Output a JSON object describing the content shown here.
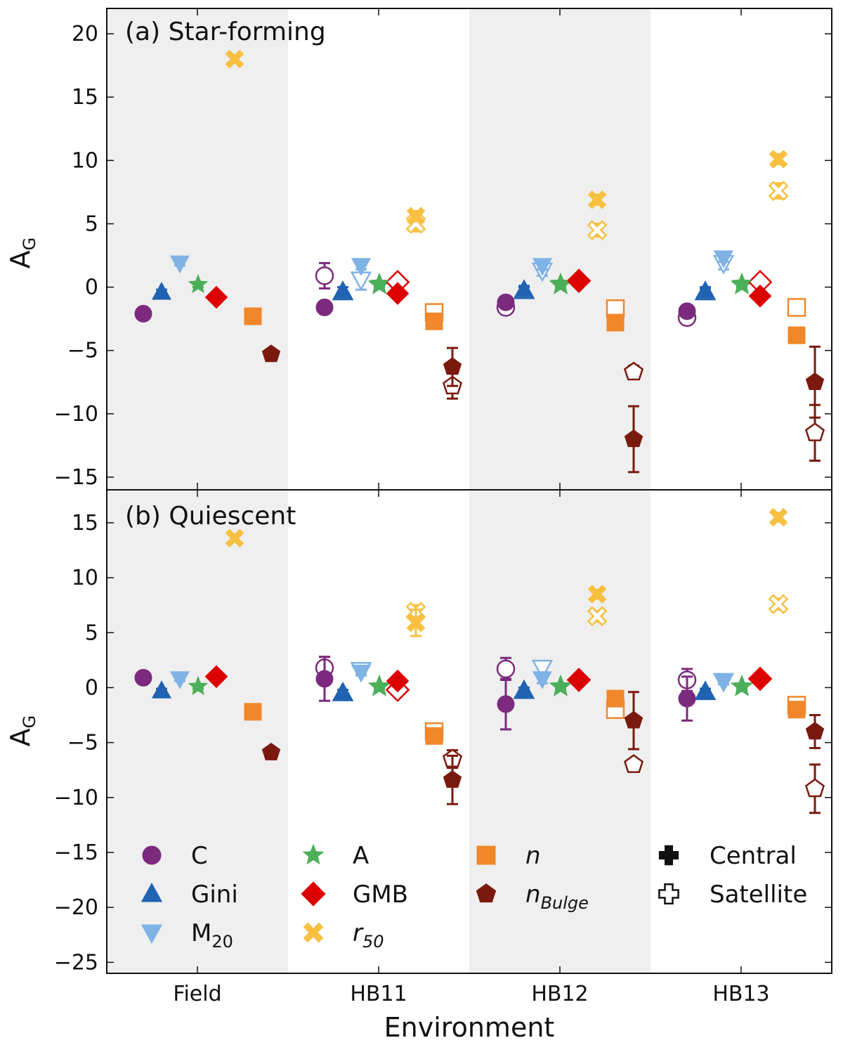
{
  "chart_data": {
    "type": "scatter",
    "categories": [
      "Field",
      "HB11",
      "HB12",
      "HB13"
    ],
    "xlabel": "Environment",
    "ylabel_main": "A",
    "ylabel_sub": "G",
    "metrics": [
      {
        "key": "C",
        "label": "C",
        "label_italic": false,
        "marker": "circle",
        "color": "#7b2a7d"
      },
      {
        "key": "Gini",
        "label": "Gini",
        "label_italic": false,
        "marker": "triangle-up",
        "color": "#1f63b2"
      },
      {
        "key": "M20",
        "label": "M",
        "label_sub": "20",
        "label_italic": false,
        "marker": "triangle-down",
        "color": "#7fb2e5"
      },
      {
        "key": "A",
        "label": "A",
        "label_italic": false,
        "marker": "star",
        "color": "#4caf5a"
      },
      {
        "key": "GMB",
        "label": "GMB",
        "label_italic": false,
        "marker": "diamond",
        "color": "#dd0000"
      },
      {
        "key": "r50",
        "label": "r",
        "label_sub": "50",
        "label_italic": true,
        "marker": "x",
        "color": "#f7c040"
      },
      {
        "key": "n",
        "label": "n",
        "label_italic": true,
        "marker": "square",
        "color": "#f0872a"
      },
      {
        "key": "nBulge",
        "label": "n",
        "label_sub": "Bulge",
        "label_italic": true,
        "marker": "pentagon",
        "color": "#7a1a0e"
      }
    ],
    "type_legend": [
      {
        "label": "Central",
        "style": "filled"
      },
      {
        "label": "Satellite",
        "style": "open"
      }
    ],
    "panels": [
      {
        "title": "(a) Star-forming",
        "ylim": [
          -16,
          22
        ],
        "yticks": [
          -15,
          -10,
          -5,
          0,
          5,
          10,
          15,
          20
        ],
        "points": [
          {
            "env": "Field",
            "metric": "C",
            "type": "central",
            "y": -2.1,
            "err": 0.3
          },
          {
            "env": "Field",
            "metric": "Gini",
            "type": "central",
            "y": -0.4,
            "err": 0.2
          },
          {
            "env": "Field",
            "metric": "M20",
            "type": "central",
            "y": 1.9,
            "err": 0.2
          },
          {
            "env": "Field",
            "metric": "A",
            "type": "central",
            "y": 0.2,
            "err": 0.2
          },
          {
            "env": "Field",
            "metric": "GMB",
            "type": "central",
            "y": -0.8,
            "err": 0.2
          },
          {
            "env": "Field",
            "metric": "r50",
            "type": "central",
            "y": 18.0,
            "err": 0.3
          },
          {
            "env": "Field",
            "metric": "n",
            "type": "central",
            "y": -2.3,
            "err": 0.2
          },
          {
            "env": "Field",
            "metric": "nBulge",
            "type": "central",
            "y": -5.3,
            "err": 0.2
          },
          {
            "env": "HB11",
            "metric": "C",
            "type": "central",
            "y": -1.6,
            "err": 0.3
          },
          {
            "env": "HB11",
            "metric": "C",
            "type": "satellite",
            "y": 0.9,
            "err": 1.0
          },
          {
            "env": "HB11",
            "metric": "Gini",
            "type": "central",
            "y": -0.3,
            "err": 0.3
          },
          {
            "env": "HB11",
            "metric": "Gini",
            "type": "satellite",
            "y": -0.4,
            "err": 0.4
          },
          {
            "env": "HB11",
            "metric": "M20",
            "type": "central",
            "y": 1.7,
            "err": 0.3
          },
          {
            "env": "HB11",
            "metric": "M20",
            "type": "satellite",
            "y": 0.6,
            "err": 0.8
          },
          {
            "env": "HB11",
            "metric": "A",
            "type": "central",
            "y": 0.3,
            "err": 0.2
          },
          {
            "env": "HB11",
            "metric": "A",
            "type": "satellite",
            "y": 0.2,
            "err": 0.2
          },
          {
            "env": "HB11",
            "metric": "GMB",
            "type": "central",
            "y": -0.5,
            "err": 0.3
          },
          {
            "env": "HB11",
            "metric": "GMB",
            "type": "satellite",
            "y": 0.4,
            "err": 0.3
          },
          {
            "env": "HB11",
            "metric": "r50",
            "type": "central",
            "y": 5.6,
            "err": 0.4
          },
          {
            "env": "HB11",
            "metric": "r50",
            "type": "satellite",
            "y": 5.0,
            "err": 0.6
          },
          {
            "env": "HB11",
            "metric": "n",
            "type": "central",
            "y": -2.7,
            "err": 0.4
          },
          {
            "env": "HB11",
            "metric": "n",
            "type": "satellite",
            "y": -2.0,
            "err": 0.5
          },
          {
            "env": "HB11",
            "metric": "nBulge",
            "type": "central",
            "y": -6.3,
            "err": 1.5
          },
          {
            "env": "HB11",
            "metric": "nBulge",
            "type": "satellite",
            "y": -7.8,
            "err": 1.0
          },
          {
            "env": "HB12",
            "metric": "C",
            "type": "central",
            "y": -1.2,
            "err": 0.3
          },
          {
            "env": "HB12",
            "metric": "C",
            "type": "satellite",
            "y": -1.6,
            "err": 0.3
          },
          {
            "env": "HB12",
            "metric": "Gini",
            "type": "central",
            "y": -0.2,
            "err": 0.3
          },
          {
            "env": "HB12",
            "metric": "Gini",
            "type": "satellite",
            "y": -0.3,
            "err": 0.3
          },
          {
            "env": "HB12",
            "metric": "M20",
            "type": "central",
            "y": 1.7,
            "err": 0.3
          },
          {
            "env": "HB12",
            "metric": "M20",
            "type": "satellite",
            "y": 1.3,
            "err": 0.4
          },
          {
            "env": "HB12",
            "metric": "A",
            "type": "central",
            "y": 0.3,
            "err": 0.2
          },
          {
            "env": "HB12",
            "metric": "A",
            "type": "satellite",
            "y": 0.2,
            "err": 0.2
          },
          {
            "env": "HB12",
            "metric": "GMB",
            "type": "central",
            "y": 0.5,
            "err": 0.3
          },
          {
            "env": "HB12",
            "metric": "GMB",
            "type": "satellite",
            "y": 0.5,
            "err": 0.3
          },
          {
            "env": "HB12",
            "metric": "r50",
            "type": "central",
            "y": 6.9,
            "err": 0.4
          },
          {
            "env": "HB12",
            "metric": "r50",
            "type": "satellite",
            "y": 4.5,
            "err": 0.5
          },
          {
            "env": "HB12",
            "metric": "n",
            "type": "central",
            "y": -2.8,
            "err": 0.4
          },
          {
            "env": "HB12",
            "metric": "n",
            "type": "satellite",
            "y": -1.7,
            "err": 0.5
          },
          {
            "env": "HB12",
            "metric": "nBulge",
            "type": "central",
            "y": -12.0,
            "err": 2.6
          },
          {
            "env": "HB12",
            "metric": "nBulge",
            "type": "satellite",
            "y": -6.7,
            "err": 0.5
          },
          {
            "env": "HB13",
            "metric": "C",
            "type": "central",
            "y": -1.9,
            "err": 0.3
          },
          {
            "env": "HB13",
            "metric": "C",
            "type": "satellite",
            "y": -2.4,
            "err": 0.3
          },
          {
            "env": "HB13",
            "metric": "Gini",
            "type": "central",
            "y": -0.3,
            "err": 0.3
          },
          {
            "env": "HB13",
            "metric": "Gini",
            "type": "satellite",
            "y": -0.4,
            "err": 0.3
          },
          {
            "env": "HB13",
            "metric": "M20",
            "type": "central",
            "y": 2.3,
            "err": 0.3
          },
          {
            "env": "HB13",
            "metric": "M20",
            "type": "satellite",
            "y": 1.9,
            "err": 0.5
          },
          {
            "env": "HB13",
            "metric": "A",
            "type": "central",
            "y": 0.3,
            "err": 0.2
          },
          {
            "env": "HB13",
            "metric": "A",
            "type": "satellite",
            "y": 0.2,
            "err": 0.2
          },
          {
            "env": "HB13",
            "metric": "GMB",
            "type": "central",
            "y": -0.7,
            "err": 0.3
          },
          {
            "env": "HB13",
            "metric": "GMB",
            "type": "satellite",
            "y": 0.4,
            "err": 0.3
          },
          {
            "env": "HB13",
            "metric": "r50",
            "type": "central",
            "y": 10.1,
            "err": 0.4
          },
          {
            "env": "HB13",
            "metric": "r50",
            "type": "satellite",
            "y": 7.6,
            "err": 0.6
          },
          {
            "env": "HB13",
            "metric": "n",
            "type": "central",
            "y": -3.8,
            "err": 0.4
          },
          {
            "env": "HB13",
            "metric": "n",
            "type": "satellite",
            "y": -1.6,
            "err": 0.6
          },
          {
            "env": "HB13",
            "metric": "nBulge",
            "type": "central",
            "y": -7.5,
            "err": 2.8
          },
          {
            "env": "HB13",
            "metric": "nBulge",
            "type": "satellite",
            "y": -11.5,
            "err": 2.2
          }
        ]
      },
      {
        "title": "(b) Quiescent",
        "ylim": [
          -26,
          18
        ],
        "yticks": [
          -25,
          -20,
          -15,
          -10,
          -5,
          0,
          5,
          10,
          15
        ],
        "points": [
          {
            "env": "Field",
            "metric": "C",
            "type": "central",
            "y": 0.9,
            "err": 0.4
          },
          {
            "env": "Field",
            "metric": "Gini",
            "type": "central",
            "y": -0.3,
            "err": 0.2
          },
          {
            "env": "Field",
            "metric": "M20",
            "type": "central",
            "y": 0.8,
            "err": 0.2
          },
          {
            "env": "Field",
            "metric": "A",
            "type": "central",
            "y": 0.1,
            "err": 0.2
          },
          {
            "env": "Field",
            "metric": "GMB",
            "type": "central",
            "y": 1.0,
            "err": 0.2
          },
          {
            "env": "Field",
            "metric": "r50",
            "type": "central",
            "y": 13.6,
            "err": 0.3
          },
          {
            "env": "Field",
            "metric": "n",
            "type": "central",
            "y": -2.2,
            "err": 0.2
          },
          {
            "env": "Field",
            "metric": "nBulge",
            "type": "central",
            "y": -5.9,
            "err": 0.2
          },
          {
            "env": "HB11",
            "metric": "C",
            "type": "central",
            "y": 0.8,
            "err": 2.0
          },
          {
            "env": "HB11",
            "metric": "C",
            "type": "satellite",
            "y": 1.8,
            "err": 1.0
          },
          {
            "env": "HB11",
            "metric": "Gini",
            "type": "central",
            "y": -0.5,
            "err": 0.3
          },
          {
            "env": "HB11",
            "metric": "Gini",
            "type": "satellite",
            "y": -0.5,
            "err": 0.3
          },
          {
            "env": "HB11",
            "metric": "M20",
            "type": "central",
            "y": 1.4,
            "err": 0.3
          },
          {
            "env": "HB11",
            "metric": "M20",
            "type": "satellite",
            "y": 1.6,
            "err": 0.3
          },
          {
            "env": "HB11",
            "metric": "A",
            "type": "central",
            "y": 0.1,
            "err": 0.2
          },
          {
            "env": "HB11",
            "metric": "A",
            "type": "satellite",
            "y": 0.1,
            "err": 0.2
          },
          {
            "env": "HB11",
            "metric": "GMB",
            "type": "central",
            "y": 0.6,
            "err": 0.3
          },
          {
            "env": "HB11",
            "metric": "GMB",
            "type": "satellite",
            "y": -0.2,
            "err": 0.4
          },
          {
            "env": "HB11",
            "metric": "r50",
            "type": "central",
            "y": 5.9,
            "err": 1.2
          },
          {
            "env": "HB11",
            "metric": "r50",
            "type": "satellite",
            "y": 6.9,
            "err": 0.6
          },
          {
            "env": "HB11",
            "metric": "n",
            "type": "central",
            "y": -4.4,
            "err": 0.4
          },
          {
            "env": "HB11",
            "metric": "n",
            "type": "satellite",
            "y": -4.0,
            "err": 0.5
          },
          {
            "env": "HB11",
            "metric": "nBulge",
            "type": "central",
            "y": -8.4,
            "err": 2.2
          },
          {
            "env": "HB11",
            "metric": "nBulge",
            "type": "satellite",
            "y": -6.5,
            "err": 0.8
          },
          {
            "env": "HB12",
            "metric": "C",
            "type": "central",
            "y": -1.5,
            "err": 2.3
          },
          {
            "env": "HB12",
            "metric": "C",
            "type": "satellite",
            "y": 1.7,
            "err": 1.0
          },
          {
            "env": "HB12",
            "metric": "Gini",
            "type": "central",
            "y": -0.3,
            "err": 0.3
          },
          {
            "env": "HB12",
            "metric": "Gini",
            "type": "satellite",
            "y": -0.3,
            "err": 0.3
          },
          {
            "env": "HB12",
            "metric": "M20",
            "type": "central",
            "y": 0.8,
            "err": 0.4
          },
          {
            "env": "HB12",
            "metric": "M20",
            "type": "satellite",
            "y": 1.8,
            "err": 0.5
          },
          {
            "env": "HB12",
            "metric": "A",
            "type": "central",
            "y": 0.1,
            "err": 0.2
          },
          {
            "env": "HB12",
            "metric": "A",
            "type": "satellite",
            "y": 0.1,
            "err": 0.2
          },
          {
            "env": "HB12",
            "metric": "GMB",
            "type": "central",
            "y": 0.7,
            "err": 0.3
          },
          {
            "env": "HB12",
            "metric": "GMB",
            "type": "satellite",
            "y": 0.7,
            "err": 0.3
          },
          {
            "env": "HB12",
            "metric": "r50",
            "type": "central",
            "y": 8.5,
            "err": 0.4
          },
          {
            "env": "HB12",
            "metric": "r50",
            "type": "satellite",
            "y": 6.5,
            "err": 0.5
          },
          {
            "env": "HB12",
            "metric": "n",
            "type": "central",
            "y": -1.0,
            "err": 0.5
          },
          {
            "env": "HB12",
            "metric": "n",
            "type": "satellite",
            "y": -2.0,
            "err": 0.6
          },
          {
            "env": "HB12",
            "metric": "nBulge",
            "type": "central",
            "y": -3.0,
            "err": 2.6
          },
          {
            "env": "HB12",
            "metric": "nBulge",
            "type": "satellite",
            "y": -7.0,
            "err": 0.4
          },
          {
            "env": "HB13",
            "metric": "C",
            "type": "central",
            "y": -1.0,
            "err": 2.0
          },
          {
            "env": "HB13",
            "metric": "C",
            "type": "satellite",
            "y": 0.7,
            "err": 1.0
          },
          {
            "env": "HB13",
            "metric": "Gini",
            "type": "central",
            "y": -0.4,
            "err": 0.3
          },
          {
            "env": "HB13",
            "metric": "Gini",
            "type": "satellite",
            "y": -0.4,
            "err": 0.3
          },
          {
            "env": "HB13",
            "metric": "M20",
            "type": "central",
            "y": 0.6,
            "err": 0.3
          },
          {
            "env": "HB13",
            "metric": "M20",
            "type": "satellite",
            "y": 0.6,
            "err": 0.3
          },
          {
            "env": "HB13",
            "metric": "A",
            "type": "central",
            "y": 0.1,
            "err": 0.2
          },
          {
            "env": "HB13",
            "metric": "A",
            "type": "satellite",
            "y": 0.1,
            "err": 0.2
          },
          {
            "env": "HB13",
            "metric": "GMB",
            "type": "central",
            "y": 0.8,
            "err": 0.3
          },
          {
            "env": "HB13",
            "metric": "GMB",
            "type": "satellite",
            "y": 0.8,
            "err": 0.3
          },
          {
            "env": "HB13",
            "metric": "r50",
            "type": "central",
            "y": 15.5,
            "err": 0.4
          },
          {
            "env": "HB13",
            "metric": "r50",
            "type": "satellite",
            "y": 7.6,
            "err": 0.5
          },
          {
            "env": "HB13",
            "metric": "n",
            "type": "central",
            "y": -2.0,
            "err": 0.4
          },
          {
            "env": "HB13",
            "metric": "n",
            "type": "satellite",
            "y": -1.6,
            "err": 0.5
          },
          {
            "env": "HB13",
            "metric": "nBulge",
            "type": "central",
            "y": -4.0,
            "err": 1.5
          },
          {
            "env": "HB13",
            "metric": "nBulge",
            "type": "satellite",
            "y": -9.2,
            "err": 2.2
          }
        ]
      }
    ]
  }
}
